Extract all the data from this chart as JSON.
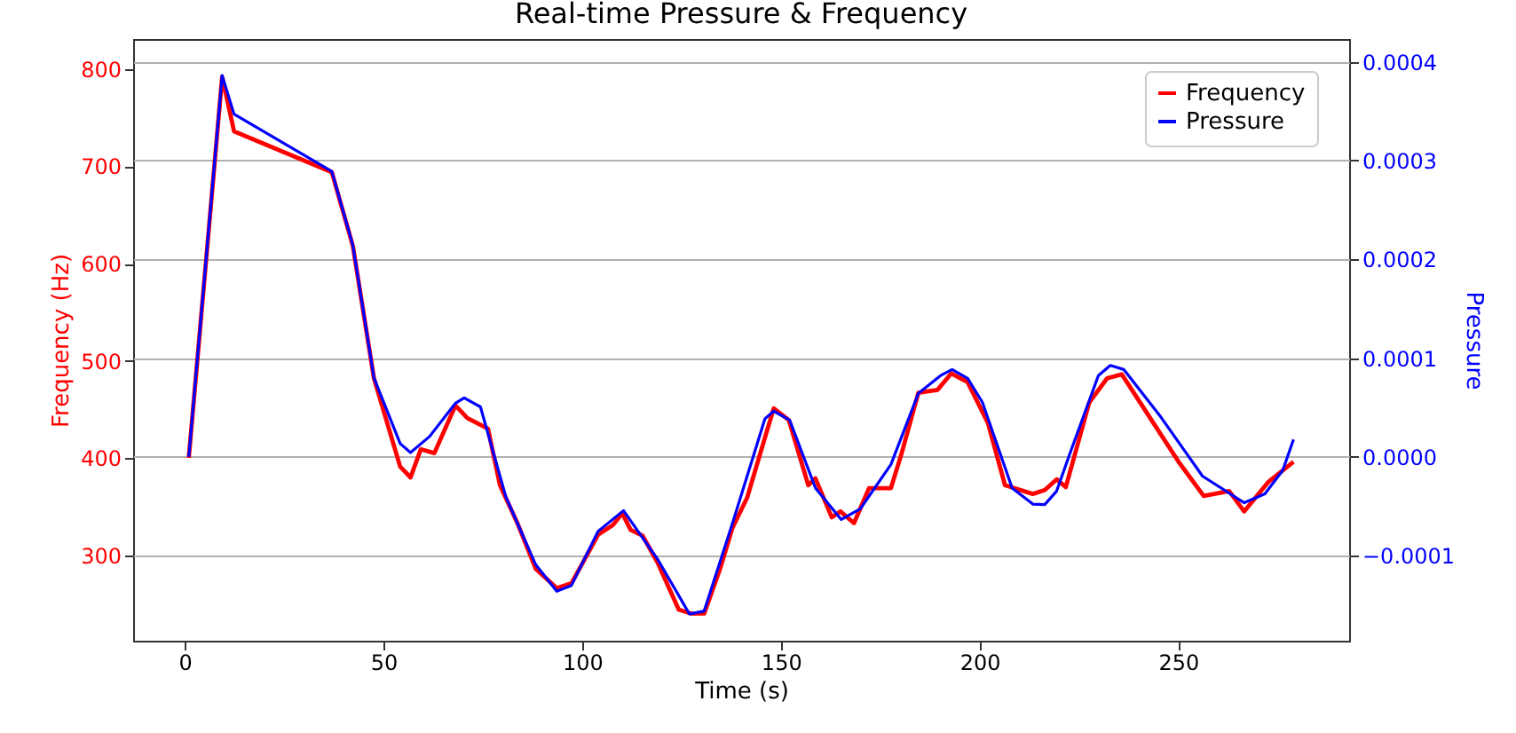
{
  "chart_data": {
    "type": "line",
    "title": "Real-time Pressure & Frequency",
    "xlabel": "Time (s)",
    "ylabel": "Frequency (Hz)",
    "y2label": "Pressure",
    "xlim": [
      -13,
      293
    ],
    "xticks": [
      0,
      50,
      100,
      150,
      200,
      250
    ],
    "ylim": [
      212,
      831
    ],
    "yticks": [
      300,
      400,
      500,
      600,
      700,
      800
    ],
    "y2lim": [
      -0.000186,
      0.000423
    ],
    "y2ticks": [
      {
        "value": -0.0001,
        "label": "−0.0001"
      },
      {
        "value": 0,
        "label": "0.0000"
      },
      {
        "value": 0.0001,
        "label": "0.0001"
      },
      {
        "value": 0.0002,
        "label": "0.0002"
      },
      {
        "value": 0.0003,
        "label": "0.0003"
      },
      {
        "value": 0.0004,
        "label": "0.0004"
      }
    ],
    "grid": "y",
    "legend": "top right",
    "marker": "none",
    "line_style": "solid",
    "series": [
      {
        "name": "Frequency",
        "color": "#ff0000",
        "x": [
          1,
          9.4,
          12.4,
          37,
          42.3,
          47.6,
          54.2,
          56.8,
          59.4,
          62.8,
          68.1,
          71.1,
          76.3,
          79.3,
          83.8,
          88.3,
          93.6,
          97.3,
          104,
          107.7,
          110.1,
          112.2,
          115.2,
          118.9,
          124.3,
          127.3,
          130.7,
          134.7,
          137.8,
          141.5,
          146,
          148.2,
          152,
          156.9,
          158.7,
          162.8,
          165,
          168.4,
          172.2,
          177.7,
          180.4,
          184.6,
          189.4,
          192.9,
          197,
          202.1,
          206.4,
          213.4,
          216.4,
          219.4,
          221.7,
          227.6,
          232.1,
          235.8,
          250.1,
          256.4,
          262.8,
          266.6,
          272.6,
          279
        ],
        "values": [
          400,
          792,
          736,
          694,
          618,
          482,
          391,
          380,
          409,
          405,
          454,
          441,
          430,
          372,
          332,
          286,
          266,
          271,
          321,
          331,
          343,
          326,
          320,
          293,
          244,
          240,
          240,
          286,
          328,
          359,
          421,
          451,
          439,
          372,
          379,
          339,
          345,
          333,
          369,
          369,
          405,
          467,
          470,
          487,
          478,
          436,
          372,
          363,
          367,
          378,
          370,
          457,
          482,
          486,
          396,
          361,
          366,
          345,
          375,
          396
        ]
      },
      {
        "name": "Pressure",
        "color": "#0000ff",
        "axis": "y2",
        "x": [
          1,
          9.4,
          12.4,
          37,
          42.3,
          47.6,
          54.2,
          56.8,
          61.6,
          68.1,
          70.3,
          74.4,
          80.8,
          88.3,
          93.6,
          97.3,
          104,
          110.4,
          118.9,
          127,
          130.7,
          137.8,
          146,
          148.2,
          152.2,
          158.7,
          165.2,
          170,
          177.7,
          184.6,
          190.2,
          193.1,
          197,
          200.7,
          208.2,
          213.4,
          216.4,
          219.4,
          223.1,
          229.9,
          232.9,
          236.3,
          245.6,
          256.1,
          266.6,
          271.8,
          276.3,
          279
        ],
        "values": [
          0,
          0.000386,
          0.000347,
          0.000289,
          0.000214,
          8e-05,
          1.35e-05,
          4.5e-06,
          2.07e-05,
          5.43e-05,
          5.97e-05,
          5.07e-05,
          -4.05e-05,
          -0.000109,
          -0.000136,
          -0.00013,
          -7.52e-05,
          -5.43e-05,
          -0.000103,
          -0.000159,
          -0.000156,
          -6.74e-05,
          3.87e-05,
          4.64e-05,
          3.74e-05,
          -3.15e-05,
          -6.33e-05,
          -5.25e-05,
          -7.6e-06,
          6.44e-05,
          8.24e-05,
          8.85e-05,
          7.95e-05,
          5.54e-05,
          -3.15e-05,
          -4.77e-05,
          -4.82e-05,
          -3.45e-05,
          7.6e-06,
          8.24e-05,
          9.26e-05,
          8.85e-05,
          4.05e-05,
          -1.94e-05,
          -4.64e-05,
          -3.74e-05,
          -1.35e-05,
          1.76e-05
        ]
      }
    ]
  }
}
